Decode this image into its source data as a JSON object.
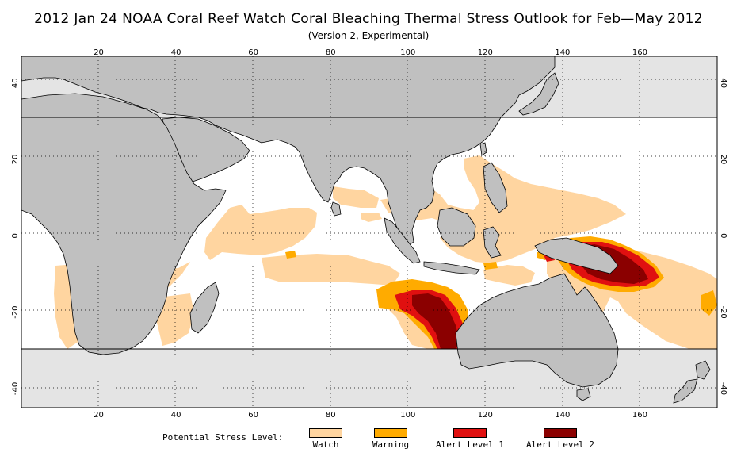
{
  "title": "2012 Jan 24 NOAA Coral Reef Watch Coral Bleaching Thermal Stress Outlook for  Feb—May 2012",
  "subtitle": "(Version 2, Experimental)",
  "map": {
    "lon_range": [
      0,
      180
    ],
    "lat_range": [
      -45,
      47
    ],
    "lon_ticks": [
      "20",
      "40",
      "60",
      "80",
      "100",
      "120",
      "140",
      "160"
    ],
    "lat_ticks_left": [
      "40",
      "20",
      "0",
      "-20",
      "-40"
    ],
    "lat_ticks_right": [
      "40",
      "20",
      "0",
      "-20",
      "-40"
    ],
    "grid": "dotted",
    "masked_band_north_lat": 30,
    "masked_band_south_lat": -30,
    "colors": {
      "ocean": "#ffffff",
      "land": "#c0c0c0",
      "masked": "#e4e4e4",
      "watch": "#ffd5a0",
      "warning": "#ffab00",
      "alert1": "#e01010",
      "alert2": "#8b0000"
    }
  },
  "legend": {
    "title": "Potential Stress Level:",
    "items": [
      {
        "label": "Watch",
        "color": "#ffd5a0"
      },
      {
        "label": "Warning",
        "color": "#ffab00"
      },
      {
        "label": "Alert Level 1",
        "color": "#e01010"
      },
      {
        "label": "Alert Level 2",
        "color": "#8b0000"
      }
    ]
  }
}
